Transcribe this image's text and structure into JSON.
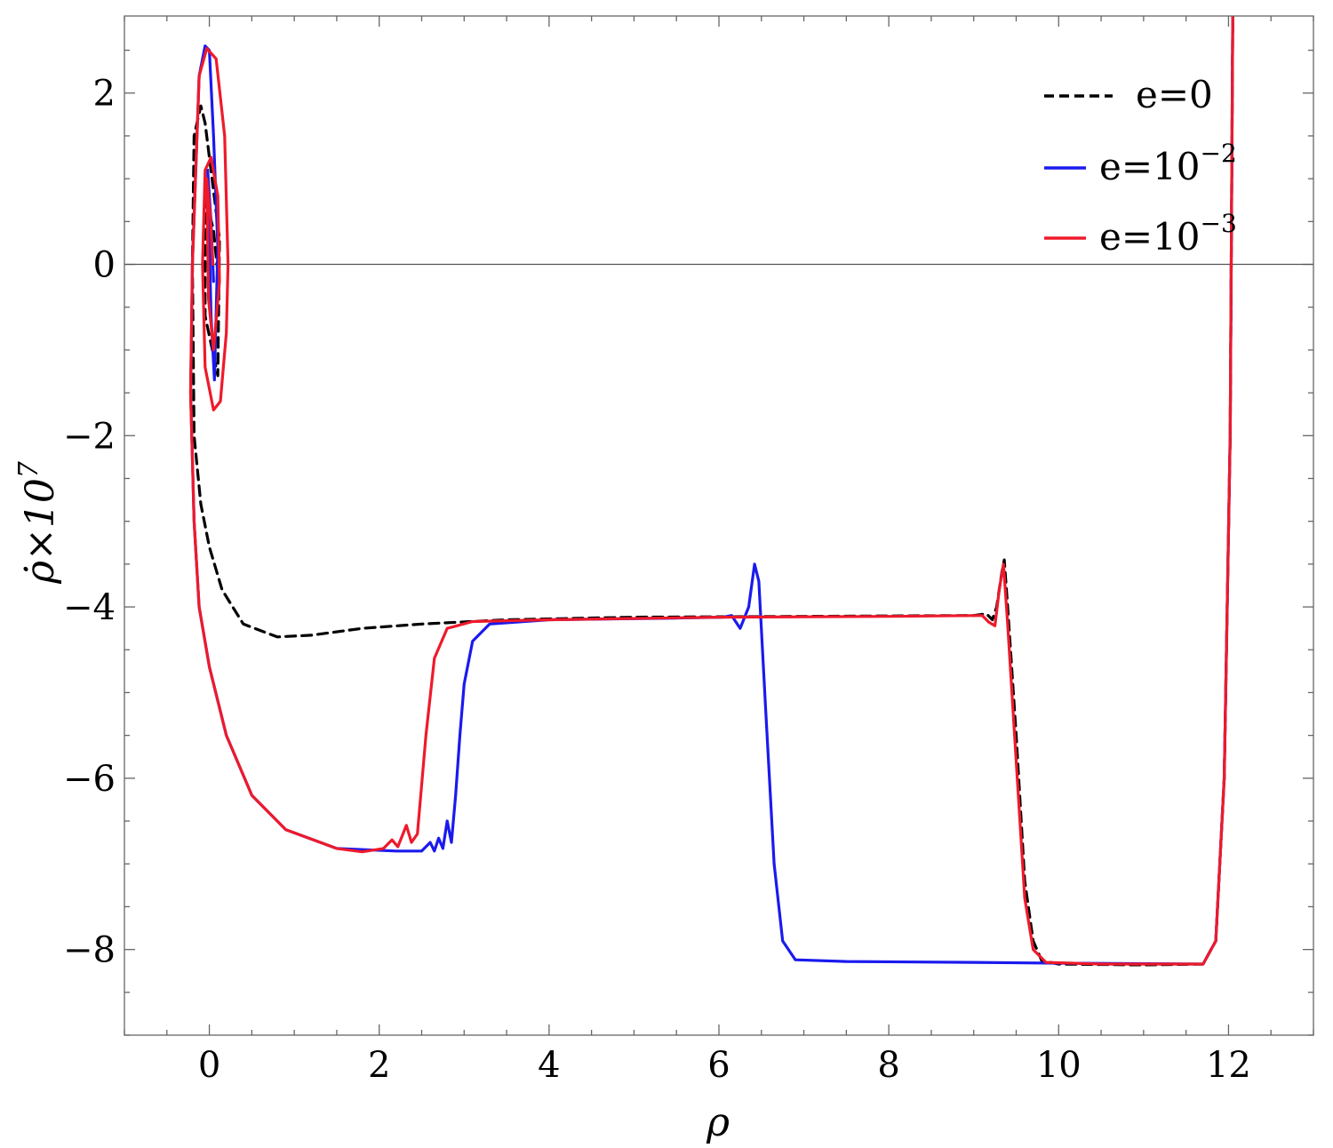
{
  "chart_data": {
    "type": "line",
    "xlabel": "ρ",
    "ylabel": "ρ̇×10",
    "ylabel_sup": "7",
    "xlim": [
      -1,
      13
    ],
    "ylim": [
      -9.0,
      2.9
    ],
    "x_major_ticks": [
      0,
      2,
      4,
      6,
      8,
      10,
      12
    ],
    "y_major_ticks": [
      -8,
      -6,
      -4,
      -2,
      0,
      2
    ],
    "x_tick_labels": [
      "0",
      "2",
      "4",
      "6",
      "8",
      "10",
      "12"
    ],
    "y_tick_labels": [
      "−8",
      "−6",
      "−4",
      "−2",
      "0",
      "2"
    ],
    "x_minor_step": 0.5,
    "y_minor_step": 0.5,
    "grid": false,
    "legend_position": "top-right",
    "legend": [
      {
        "name": "e=0",
        "sup": "",
        "style": "dashed",
        "color": "#000000"
      },
      {
        "name": "e=10",
        "sup": "−2",
        "style": "solid",
        "color": "#1a1aee"
      },
      {
        "name": "e=10",
        "sup": "−3",
        "style": "solid",
        "color": "#ee1a2b"
      }
    ],
    "series": [
      {
        "name": "e=0",
        "color": "#000000",
        "style": "dashed",
        "points": [
          [
            0.1,
            -0.1
          ],
          [
            0.05,
            0.4
          ],
          [
            -0.05,
            0.8
          ],
          [
            -0.05,
            -0.6
          ],
          [
            0.1,
            -1.3
          ],
          [
            0.12,
            0.3
          ],
          [
            -0.05,
            1.65
          ],
          [
            -0.1,
            1.85
          ],
          [
            -0.18,
            1.5
          ],
          [
            -0.2,
            0.0
          ],
          [
            -0.18,
            -2.0
          ],
          [
            -0.1,
            -2.8
          ],
          [
            0.0,
            -3.3
          ],
          [
            0.15,
            -3.8
          ],
          [
            0.4,
            -4.2
          ],
          [
            0.8,
            -4.35
          ],
          [
            1.2,
            -4.33
          ],
          [
            1.8,
            -4.25
          ],
          [
            2.5,
            -4.2
          ],
          [
            3.5,
            -4.15
          ],
          [
            5.0,
            -4.12
          ],
          [
            7.0,
            -4.11
          ],
          [
            9.0,
            -4.1
          ],
          [
            9.15,
            -4.08
          ],
          [
            9.22,
            -4.15
          ],
          [
            9.27,
            -4.0
          ],
          [
            9.33,
            -3.6
          ],
          [
            9.36,
            -3.45
          ],
          [
            9.4,
            -4.0
          ],
          [
            9.5,
            -5.5
          ],
          [
            9.6,
            -7.2
          ],
          [
            9.7,
            -7.9
          ],
          [
            9.8,
            -8.13
          ],
          [
            10.0,
            -8.17
          ],
          [
            11.0,
            -8.18
          ],
          [
            11.7,
            -8.17
          ],
          [
            11.85,
            -7.9
          ],
          [
            11.95,
            -6.0
          ],
          [
            12.02,
            -2.0
          ],
          [
            12.05,
            2.9
          ]
        ]
      },
      {
        "name": "e=10^-2",
        "color": "#1a1aee",
        "style": "solid",
        "points": [
          [
            0.05,
            -0.2
          ],
          [
            0.02,
            0.5
          ],
          [
            -0.02,
            1.1
          ],
          [
            0.02,
            -0.6
          ],
          [
            0.06,
            -1.35
          ],
          [
            0.1,
            0.2
          ],
          [
            0.05,
            1.5
          ],
          [
            0.0,
            2.5
          ],
          [
            -0.05,
            2.55
          ],
          [
            -0.12,
            2.2
          ],
          [
            -0.2,
            0.0
          ],
          [
            -0.22,
            -1.5
          ],
          [
            -0.18,
            -3.0
          ],
          [
            -0.12,
            -4.0
          ],
          [
            0.0,
            -4.7
          ],
          [
            0.2,
            -5.5
          ],
          [
            0.5,
            -6.2
          ],
          [
            0.9,
            -6.6
          ],
          [
            1.5,
            -6.82
          ],
          [
            2.2,
            -6.85
          ],
          [
            2.5,
            -6.85
          ],
          [
            2.6,
            -6.75
          ],
          [
            2.65,
            -6.85
          ],
          [
            2.7,
            -6.7
          ],
          [
            2.75,
            -6.82
          ],
          [
            2.8,
            -6.5
          ],
          [
            2.85,
            -6.75
          ],
          [
            2.9,
            -6.2
          ],
          [
            2.95,
            -5.5
          ],
          [
            3.0,
            -4.9
          ],
          [
            3.1,
            -4.4
          ],
          [
            3.3,
            -4.2
          ],
          [
            4.0,
            -4.15
          ],
          [
            5.5,
            -4.13
          ],
          [
            6.05,
            -4.12
          ],
          [
            6.15,
            -4.1
          ],
          [
            6.25,
            -4.25
          ],
          [
            6.35,
            -4.0
          ],
          [
            6.42,
            -3.5
          ],
          [
            6.47,
            -3.7
          ],
          [
            6.55,
            -5.2
          ],
          [
            6.65,
            -7.0
          ],
          [
            6.75,
            -7.9
          ],
          [
            6.9,
            -8.12
          ],
          [
            7.5,
            -8.14
          ],
          [
            9.0,
            -8.15
          ],
          [
            10.0,
            -8.16
          ],
          [
            11.7,
            -8.17
          ],
          [
            11.85,
            -7.9
          ],
          [
            11.95,
            -6.0
          ],
          [
            12.02,
            -2.0
          ],
          [
            12.05,
            2.9
          ]
        ]
      },
      {
        "name": "e=10^-3",
        "color": "#ee1a2b",
        "style": "solid",
        "points": [
          [
            0.04,
            0.0
          ],
          [
            0.01,
            0.6
          ],
          [
            -0.03,
            1.0
          ],
          [
            -0.01,
            -0.4
          ],
          [
            0.05,
            -1.0
          ],
          [
            0.12,
            -0.2
          ],
          [
            0.1,
            0.8
          ],
          [
            0.02,
            1.25
          ],
          [
            -0.05,
            1.1
          ],
          [
            -0.08,
            0.0
          ],
          [
            -0.05,
            -1.2
          ],
          [
            0.05,
            -1.7
          ],
          [
            0.13,
            -1.6
          ],
          [
            0.2,
            -0.8
          ],
          [
            0.22,
            0.0
          ],
          [
            0.18,
            1.5
          ],
          [
            0.08,
            2.4
          ],
          [
            -0.03,
            2.52
          ],
          [
            -0.12,
            2.2
          ],
          [
            -0.2,
            0.0
          ],
          [
            -0.22,
            -1.5
          ],
          [
            -0.18,
            -3.0
          ],
          [
            -0.12,
            -4.0
          ],
          [
            0.0,
            -4.7
          ],
          [
            0.2,
            -5.5
          ],
          [
            0.5,
            -6.2
          ],
          [
            0.9,
            -6.6
          ],
          [
            1.5,
            -6.82
          ],
          [
            1.8,
            -6.86
          ],
          [
            2.05,
            -6.82
          ],
          [
            2.15,
            -6.72
          ],
          [
            2.22,
            -6.8
          ],
          [
            2.32,
            -6.55
          ],
          [
            2.38,
            -6.75
          ],
          [
            2.45,
            -6.65
          ],
          [
            2.55,
            -5.5
          ],
          [
            2.65,
            -4.6
          ],
          [
            2.8,
            -4.25
          ],
          [
            3.1,
            -4.17
          ],
          [
            4.0,
            -4.15
          ],
          [
            6.0,
            -4.12
          ],
          [
            8.0,
            -4.11
          ],
          [
            9.1,
            -4.1
          ],
          [
            9.18,
            -4.18
          ],
          [
            9.25,
            -4.22
          ],
          [
            9.3,
            -3.8
          ],
          [
            9.35,
            -3.5
          ],
          [
            9.4,
            -4.2
          ],
          [
            9.5,
            -5.8
          ],
          [
            9.6,
            -7.4
          ],
          [
            9.7,
            -8.0
          ],
          [
            9.85,
            -8.15
          ],
          [
            10.5,
            -8.17
          ],
          [
            11.7,
            -8.17
          ],
          [
            11.85,
            -7.9
          ],
          [
            11.95,
            -6.0
          ],
          [
            12.02,
            -2.0
          ],
          [
            12.05,
            2.9
          ]
        ]
      }
    ]
  }
}
